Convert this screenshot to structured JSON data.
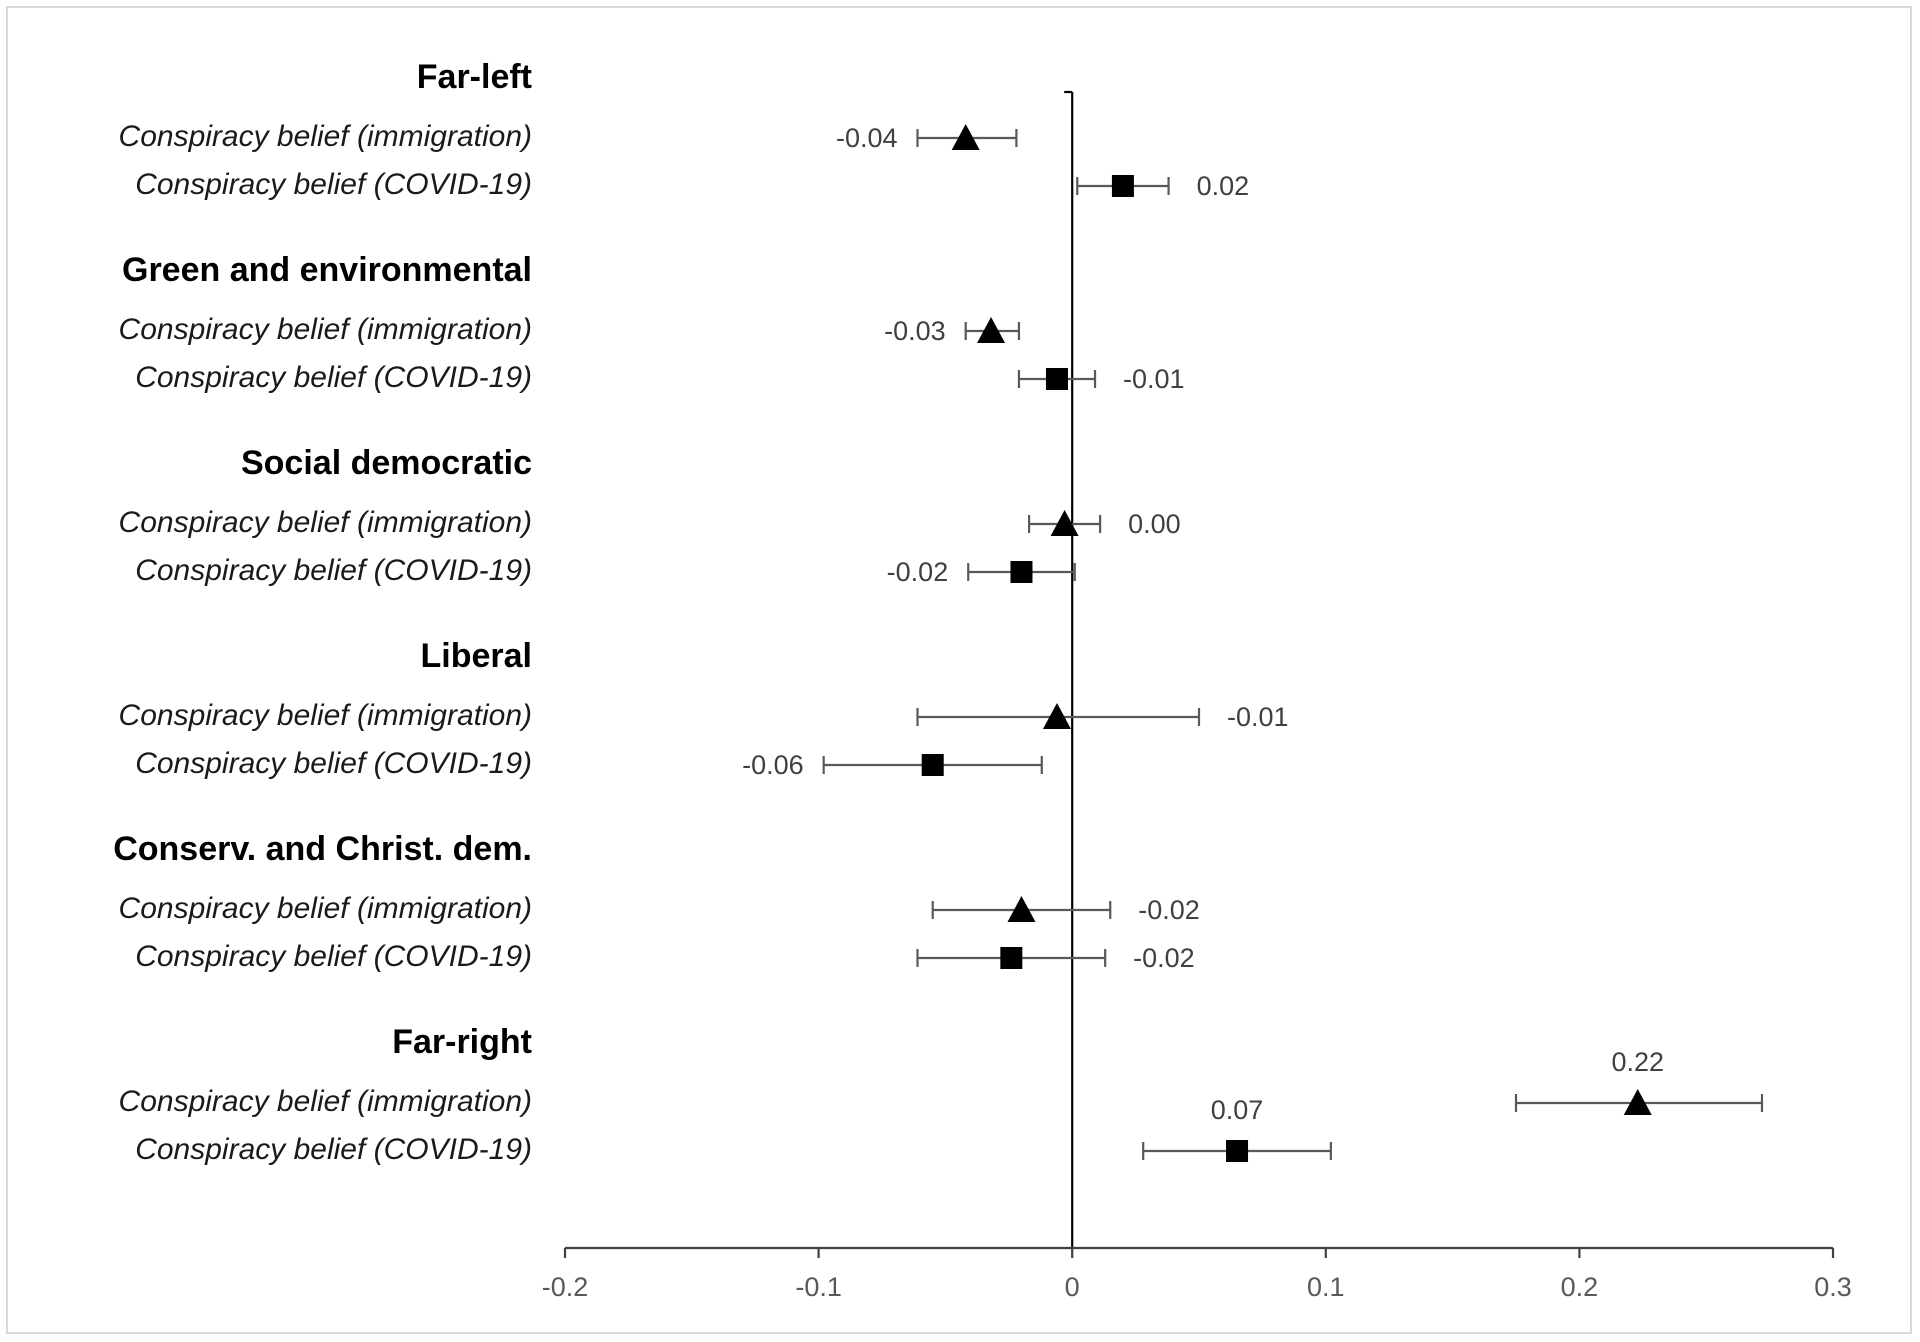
{
  "chart_data": {
    "type": "scatter",
    "xlim": [
      -0.2,
      0.3
    ],
    "x_ticks": [
      "-0.2",
      "-0.1",
      "0",
      "0.1",
      "0.2",
      "0.3"
    ],
    "series_markers": {
      "immigration": "triangle",
      "covid": "square"
    },
    "groups": [
      {
        "name": "Far-left",
        "rows": [
          {
            "label": "Conspiracy belief (immigration)",
            "marker": "triangle",
            "value": -0.042,
            "ci": [
              -0.061,
              -0.022
            ],
            "value_label": "-0.04",
            "label_pos": "left"
          },
          {
            "label": "Conspiracy belief (COVID-19)",
            "marker": "square",
            "value": 0.02,
            "ci": [
              0.002,
              0.038
            ],
            "value_label": "0.02",
            "label_pos": "right"
          }
        ]
      },
      {
        "name": "Green and environmental",
        "rows": [
          {
            "label": "Conspiracy belief (immigration)",
            "marker": "triangle",
            "value": -0.032,
            "ci": [
              -0.042,
              -0.021
            ],
            "value_label": "-0.03",
            "label_pos": "left"
          },
          {
            "label": "Conspiracy belief (COVID-19)",
            "marker": "square",
            "value": -0.006,
            "ci": [
              -0.021,
              0.009
            ],
            "value_label": "-0.01",
            "label_pos": "right"
          }
        ]
      },
      {
        "name": "Social democratic",
        "rows": [
          {
            "label": "Conspiracy belief (immigration)",
            "marker": "triangle",
            "value": -0.003,
            "ci": [
              -0.017,
              0.011
            ],
            "value_label": "0.00",
            "label_pos": "right"
          },
          {
            "label": "Conspiracy belief (COVID-19)",
            "marker": "square",
            "value": -0.02,
            "ci": [
              -0.041,
              0.001
            ],
            "value_label": "-0.02",
            "label_pos": "left"
          }
        ]
      },
      {
        "name": "Liberal",
        "rows": [
          {
            "label": "Conspiracy belief (immigration)",
            "marker": "triangle",
            "value": -0.006,
            "ci": [
              -0.061,
              0.05
            ],
            "value_label": "-0.01",
            "label_pos": "right"
          },
          {
            "label": "Conspiracy belief (COVID-19)",
            "marker": "square",
            "value": -0.055,
            "ci": [
              -0.098,
              -0.012
            ],
            "value_label": "-0.06",
            "label_pos": "left"
          }
        ]
      },
      {
        "name": "Conserv. and Christ. dem.",
        "rows": [
          {
            "label": "Conspiracy belief (immigration)",
            "marker": "triangle",
            "value": -0.02,
            "ci": [
              -0.055,
              0.015
            ],
            "value_label": "-0.02",
            "label_pos": "right"
          },
          {
            "label": "Conspiracy belief (COVID-19)",
            "marker": "square",
            "value": -0.024,
            "ci": [
              -0.061,
              0.013
            ],
            "value_label": "-0.02",
            "label_pos": "right"
          }
        ]
      },
      {
        "name": "Far-right",
        "rows": [
          {
            "label": "Conspiracy belief (immigration)",
            "marker": "triangle",
            "value": 0.223,
            "ci": [
              0.175,
              0.272
            ],
            "value_label": "0.22",
            "label_pos": "above"
          },
          {
            "label": "Conspiracy belief (COVID-19)",
            "marker": "square",
            "value": 0.065,
            "ci": [
              0.028,
              0.102
            ],
            "value_label": "0.07",
            "label_pos": "above"
          }
        ]
      }
    ]
  }
}
